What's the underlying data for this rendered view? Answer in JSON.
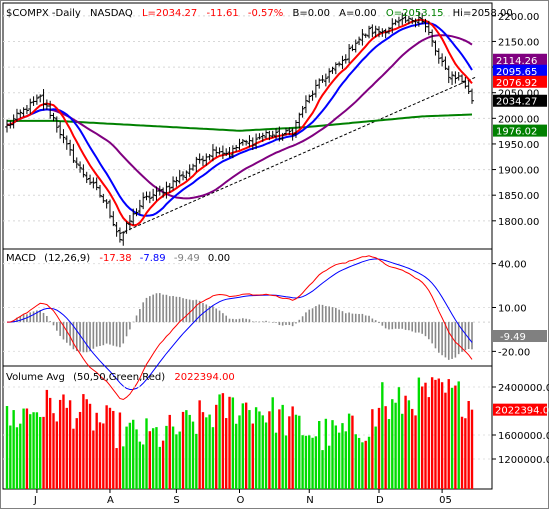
{
  "header": {
    "symbol": "$COMPX",
    "period": "Daily",
    "exchange": "NASDAQ",
    "last": "L=2034.27",
    "change": "-11.61",
    "change_pct": "-0.57%",
    "b": "B=0.00",
    "a": "A=0.00",
    "open": "O=2053.15",
    "high": "Hi=2058.00"
  },
  "macd_label": {
    "name": "MACD",
    "params": "(12,26,9)",
    "v1": "-17.38",
    "v2": "-7.89",
    "v3": "-9.49",
    "v4": "0.00"
  },
  "volume_label": {
    "name": "Volume Avg",
    "params": "(50,50,Green,Red)",
    "value": "2022394.00"
  },
  "colors": {
    "price": "#000000",
    "ma_red": "#ff0000",
    "ma_blue": "#0000ff",
    "ma_purple": "#800080",
    "ma_green": "#008000",
    "vol_up": "#00dd00",
    "vol_down": "#ff0000",
    "hist": "#888888",
    "trendline": "#000000"
  },
  "chart_data": [
    {
      "type": "line",
      "panel": "price",
      "yscale": "linear",
      "ylim": [
        1745,
        2225
      ],
      "y_ticks": [
        1800,
        1850,
        1900,
        1950,
        2000,
        2050,
        2100,
        2150,
        2200
      ],
      "y_tick_labels": [
        "1800.00",
        "1850.00",
        "1900.00",
        "1950.00",
        "2000.00",
        "2050.00",
        "2100.00",
        "2150.00",
        "2200.00"
      ],
      "x_labels": [
        "J",
        "A",
        "S",
        "O",
        "N",
        "D",
        "05"
      ],
      "x_label_index": [
        9,
        31,
        51,
        70,
        91,
        112,
        131
      ],
      "bars": 141,
      "anchors_close": [
        [
          0,
          1985
        ],
        [
          5,
          2015
        ],
        [
          10,
          2040
        ],
        [
          14,
          2000
        ],
        [
          18,
          1945
        ],
        [
          22,
          1900
        ],
        [
          27,
          1860
        ],
        [
          30,
          1830
        ],
        [
          34,
          1765
        ],
        [
          37,
          1800
        ],
        [
          41,
          1840
        ],
        [
          47,
          1860
        ],
        [
          52,
          1885
        ],
        [
          58,
          1920
        ],
        [
          63,
          1940
        ],
        [
          67,
          1930
        ],
        [
          70,
          1950
        ],
        [
          74,
          1955
        ],
        [
          78,
          1970
        ],
        [
          82,
          1965
        ],
        [
          86,
          1975
        ],
        [
          89,
          2020
        ],
        [
          93,
          2060
        ],
        [
          97,
          2090
        ],
        [
          101,
          2110
        ],
        [
          105,
          2150
        ],
        [
          109,
          2170
        ],
        [
          113,
          2170
        ],
        [
          117,
          2185
        ],
        [
          121,
          2190
        ],
        [
          124,
          2200
        ],
        [
          127,
          2165
        ],
        [
          130,
          2115
        ],
        [
          133,
          2085
        ],
        [
          136,
          2080
        ],
        [
          138,
          2065
        ],
        [
          140,
          2034.27
        ]
      ],
      "last_high": 2058.0,
      "last_open": 2053.15,
      "ma_labels": [
        {
          "value": 2114.26,
          "text": "2114.26",
          "color": "#800080"
        },
        {
          "value": 2095.65,
          "text": "2095.65",
          "color": "#0000ff"
        },
        {
          "value": 2076.92,
          "text": "2076.92",
          "color": "#ff0000"
        },
        {
          "value": 2034.27,
          "text": "2034.27",
          "color": "#000000"
        },
        {
          "value": 1976.02,
          "text": "1976.02",
          "color": "#008000"
        }
      ],
      "trendline": [
        [
          34,
          1775
        ],
        [
          141,
          2080
        ]
      ]
    },
    {
      "type": "line",
      "panel": "macd",
      "ylim": [
        -30,
        50
      ],
      "y_ticks": [
        40,
        10,
        -20
      ],
      "y_tick_labels": [
        "40.00",
        "10.00",
        "-20.00"
      ],
      "highlight": {
        "value": -9.49,
        "text": "-9.49"
      }
    },
    {
      "type": "bar",
      "panel": "volume",
      "ylim": [
        700000,
        2750000
      ],
      "y_ticks": [
        2400000,
        1600000,
        1200000
      ],
      "y_tick_labels": [
        "2400000.00",
        "1600000.00",
        "1200000.00"
      ],
      "highlight": {
        "value": 2022394,
        "text": "2022394.00"
      }
    }
  ]
}
